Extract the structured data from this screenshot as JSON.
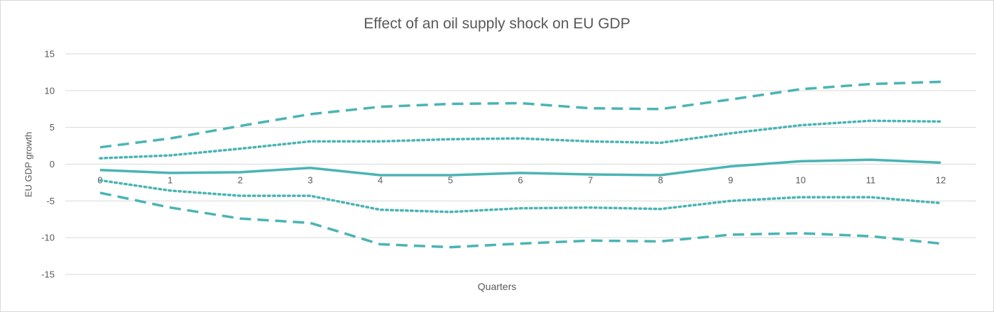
{
  "chart_data": {
    "type": "line",
    "title": "Effect of an oil supply shock on EU GDP",
    "xlabel": "Quarters",
    "ylabel": "EU GDP growth",
    "categories": [
      "0",
      "1",
      "2",
      "3",
      "4",
      "5",
      "6",
      "7",
      "8",
      "9",
      "10",
      "11",
      "12"
    ],
    "ylim": [
      -15,
      15
    ],
    "yticks": [
      -15,
      -10,
      -5,
      0,
      5,
      10,
      15
    ],
    "grid": true,
    "legend": "none",
    "color": "#4BB4B4",
    "series": [
      {
        "style": "dashed",
        "values": [
          2.3,
          3.5,
          5.2,
          6.8,
          7.8,
          8.2,
          8.3,
          7.6,
          7.5,
          8.8,
          10.2,
          10.9,
          11.2
        ]
      },
      {
        "style": "dotted",
        "values": [
          0.8,
          1.2,
          2.1,
          3.1,
          3.1,
          3.4,
          3.5,
          3.1,
          2.9,
          4.2,
          5.3,
          5.9,
          5.8
        ]
      },
      {
        "style": "solid",
        "values": [
          -0.8,
          -1.2,
          -1.1,
          -0.5,
          -1.5,
          -1.5,
          -1.2,
          -1.4,
          -1.5,
          -0.3,
          0.4,
          0.6,
          0.2
        ]
      },
      {
        "style": "dotted",
        "values": [
          -2.2,
          -3.6,
          -4.3,
          -4.3,
          -6.2,
          -6.5,
          -6.0,
          -5.9,
          -6.1,
          -5.0,
          -4.5,
          -4.5,
          -5.3
        ]
      },
      {
        "style": "dashed",
        "values": [
          -3.9,
          -5.9,
          -7.4,
          -8.0,
          -10.9,
          -11.3,
          -10.8,
          -10.4,
          -10.5,
          -9.6,
          -9.4,
          -9.8,
          -10.8
        ]
      }
    ]
  }
}
